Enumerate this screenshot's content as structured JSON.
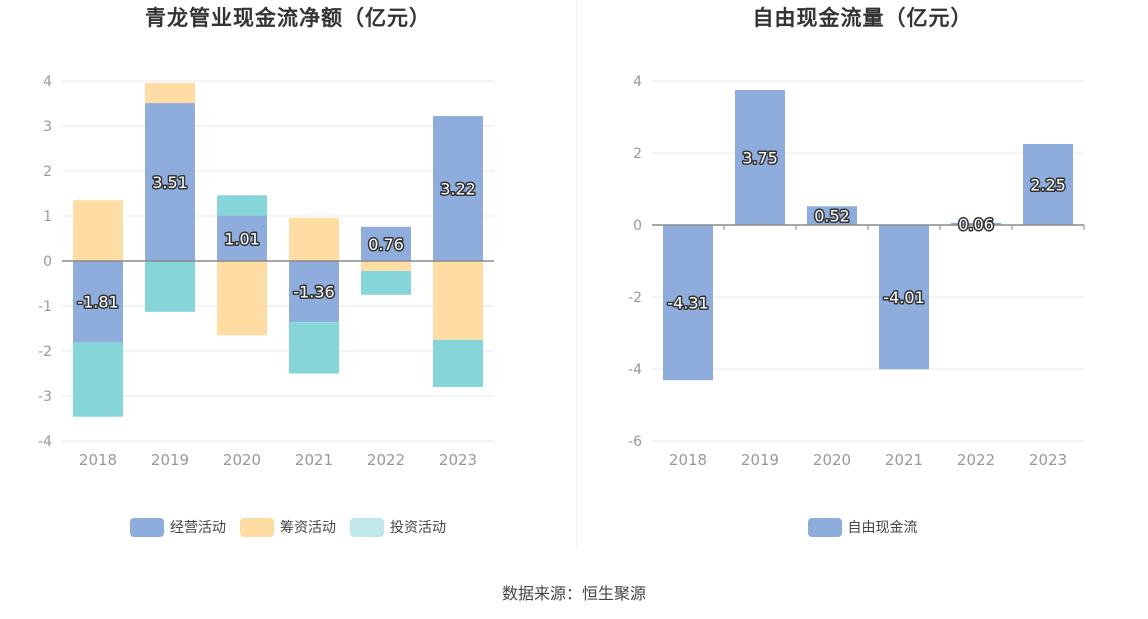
{
  "source": "数据来源：恒生聚源",
  "colors": {
    "operating": "#8eaddc",
    "financing": "#ffdca3",
    "investing": "#86d6d9",
    "investing_legend": "#c0e8ea",
    "free_cf": "#8eaddc",
    "grid": "#e6e9f2",
    "axis_label": "#999999",
    "zero_line": "#8a8a8a"
  },
  "chart_data": [
    {
      "type": "bar",
      "stacked": true,
      "title": "青龙管业现金流净额（亿元）",
      "categories": [
        "2018",
        "2019",
        "2020",
        "2021",
        "2022",
        "2023"
      ],
      "ylim": [
        -4,
        4
      ],
      "yticks": [
        -4,
        -3,
        -2,
        -1,
        0,
        1,
        2,
        3,
        4
      ],
      "legend_position": "bottom",
      "series": [
        {
          "name": "经营活动",
          "color_key": "operating",
          "values": [
            -1.81,
            3.51,
            1.01,
            -1.36,
            0.76,
            3.22
          ],
          "labels": [
            "-1.81",
            "3.51",
            "1.01",
            "-1.36",
            "0.76",
            "3.22"
          ]
        },
        {
          "name": "筹资活动",
          "color_key": "financing",
          "values": [
            1.35,
            0.45,
            -1.65,
            0.96,
            -0.22,
            -1.75
          ]
        },
        {
          "name": "投资活动",
          "color_key": "investing",
          "values": [
            -1.65,
            -1.13,
            0.45,
            -1.14,
            -0.53,
            -1.05
          ]
        }
      ]
    },
    {
      "type": "bar",
      "title": "自由现金流量（亿元）",
      "categories": [
        "2018",
        "2019",
        "2020",
        "2021",
        "2022",
        "2023"
      ],
      "ylim": [
        -6,
        4
      ],
      "yticks": [
        -6,
        -4,
        -2,
        0,
        2,
        4
      ],
      "legend_position": "bottom",
      "series": [
        {
          "name": "自由现金流",
          "color_key": "free_cf",
          "values": [
            -4.31,
            3.75,
            0.52,
            -4.01,
            0.06,
            2.25
          ],
          "labels": [
            "-4.31",
            "3.75",
            "0.52",
            "-4.01",
            "0.06",
            "2.25"
          ]
        }
      ]
    }
  ]
}
